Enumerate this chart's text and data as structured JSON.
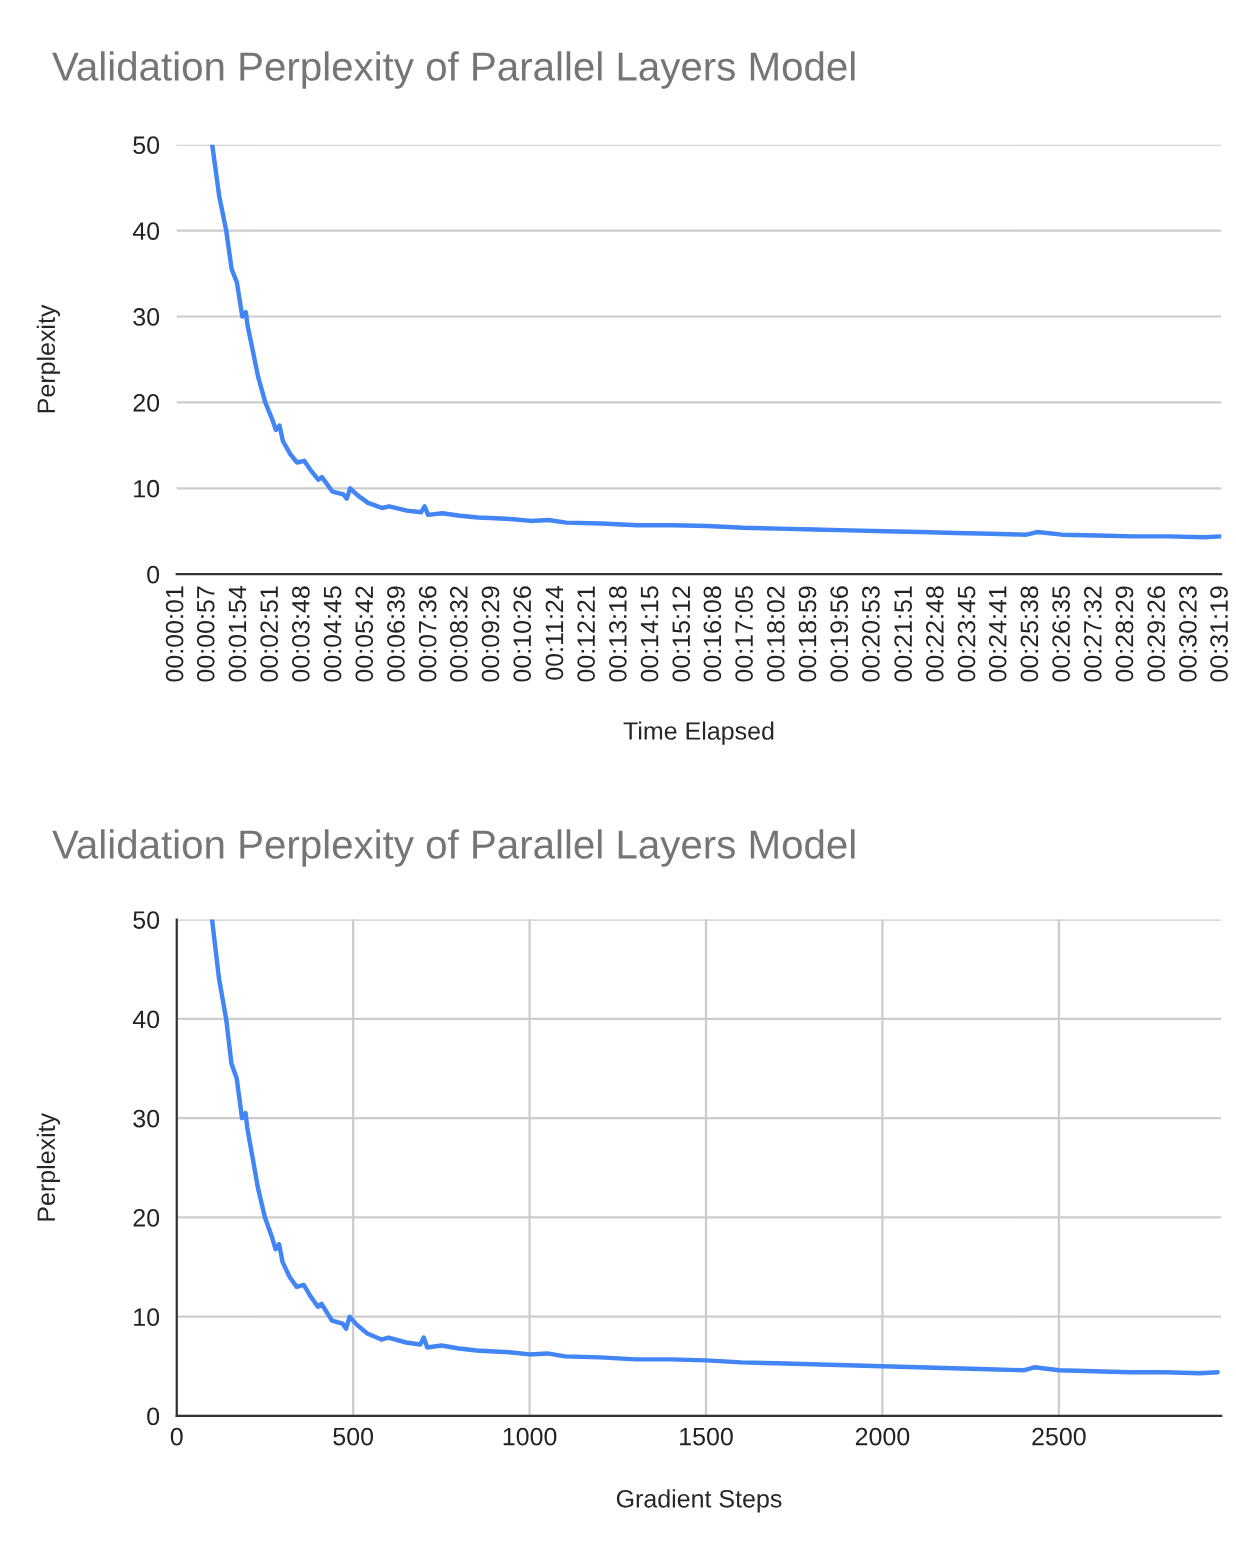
{
  "chart_data": [
    {
      "type": "line",
      "title": "Validation Perplexity of Parallel Layers Model",
      "xlabel": "Time Elapsed",
      "ylabel": "Perplexity",
      "grid": "y",
      "line_style": "solid",
      "xlim": [
        0.00028,
        0.52194
      ],
      "ylim": [
        0,
        50
      ],
      "yticks": [
        0,
        10,
        20,
        30,
        40,
        50
      ],
      "xticks": [
        {
          "value": 0.00028,
          "label": "00:00:01"
        },
        {
          "value": 0.01583,
          "label": "00:00:57"
        },
        {
          "value": 0.03167,
          "label": "00:01:54"
        },
        {
          "value": 0.0475,
          "label": "00:02:51"
        },
        {
          "value": 0.06333,
          "label": "00:03:48"
        },
        {
          "value": 0.07917,
          "label": "00:04:45"
        },
        {
          "value": 0.095,
          "label": "00:05:42"
        },
        {
          "value": 0.11083,
          "label": "00:06:39"
        },
        {
          "value": 0.12667,
          "label": "00:07:36"
        },
        {
          "value": 0.14222,
          "label": "00:08:32"
        },
        {
          "value": 0.15806,
          "label": "00:09:29"
        },
        {
          "value": 0.17389,
          "label": "00:10:26"
        },
        {
          "value": 0.19,
          "label": "00:11:24"
        },
        {
          "value": 0.20583,
          "label": "00:12:21"
        },
        {
          "value": 0.22167,
          "label": "00:13:18"
        },
        {
          "value": 0.2375,
          "label": "00:14:15"
        },
        {
          "value": 0.25333,
          "label": "00:15:12"
        },
        {
          "value": 0.26889,
          "label": "00:16:08"
        },
        {
          "value": 0.28472,
          "label": "00:17:05"
        },
        {
          "value": 0.30056,
          "label": "00:18:02"
        },
        {
          "value": 0.31639,
          "label": "00:18:59"
        },
        {
          "value": 0.33222,
          "label": "00:19:56"
        },
        {
          "value": 0.34806,
          "label": "00:20:53"
        },
        {
          "value": 0.36417,
          "label": "00:21:51"
        },
        {
          "value": 0.38,
          "label": "00:22:48"
        },
        {
          "value": 0.39583,
          "label": "00:23:45"
        },
        {
          "value": 0.41139,
          "label": "00:24:41"
        },
        {
          "value": 0.42722,
          "label": "00:25:38"
        },
        {
          "value": 0.44306,
          "label": "00:26:35"
        },
        {
          "value": 0.45889,
          "label": "00:27:32"
        },
        {
          "value": 0.47472,
          "label": "00:28:29"
        },
        {
          "value": 0.49056,
          "label": "00:29:26"
        },
        {
          "value": 0.50639,
          "label": "00:30:23"
        },
        {
          "value": 0.52194,
          "label": "00:31:19"
        }
      ],
      "series": [
        {
          "color": "#4285f4",
          "x": [
            0.018,
            0.0215,
            0.025,
            0.0277,
            0.0303,
            0.033,
            0.0348,
            0.0356,
            0.0374,
            0.0409,
            0.0445,
            0.048,
            0.0498,
            0.0516,
            0.0533,
            0.0569,
            0.0604,
            0.0639,
            0.0675,
            0.071,
            0.0728,
            0.0781,
            0.0834,
            0.0852,
            0.0869,
            0.0905,
            0.0958,
            0.0993,
            0.1028,
            0.1064,
            0.1152,
            0.1223,
            0.1241,
            0.1258,
            0.1329,
            0.1418,
            0.1506,
            0.1594,
            0.1683,
            0.1771,
            0.1859,
            0.1948,
            0.2125,
            0.2302,
            0.2478,
            0.2655,
            0.2832,
            0.3009,
            0.3186,
            0.3363,
            0.3539,
            0.3716,
            0.3893,
            0.407,
            0.4247,
            0.43,
            0.4424,
            0.4601,
            0.4777,
            0.4954,
            0.5131,
            0.5219
          ],
          "values": [
            50,
            44,
            40,
            35.5,
            34,
            30,
            30.5,
            29,
            27,
            23,
            20,
            18,
            16.8,
            17.3,
            15.5,
            14,
            13,
            13.2,
            12,
            11,
            11.3,
            9.6,
            9.3,
            8.8,
            10,
            9.2,
            8.3,
            8.0,
            7.7,
            7.9,
            7.4,
            7.2,
            7.9,
            6.9,
            7.1,
            6.8,
            6.6,
            6.5,
            6.4,
            6.2,
            6.3,
            6.0,
            5.9,
            5.7,
            5.7,
            5.6,
            5.4,
            5.3,
            5.2,
            5.1,
            5.0,
            4.9,
            4.8,
            4.7,
            4.6,
            4.9,
            4.6,
            4.5,
            4.4,
            4.4,
            4.3,
            4.4
          ]
        }
      ]
    },
    {
      "type": "line",
      "title": "Validation Perplexity of Parallel Layers Model",
      "xlabel": "Gradient Steps",
      "ylabel": "Perplexity",
      "grid": true,
      "line_style": "solid",
      "xlim": [
        0,
        2960
      ],
      "ylim": [
        0,
        50
      ],
      "xticks": [
        0,
        500,
        1000,
        1500,
        2000,
        2500
      ],
      "yticks": [
        0,
        10,
        20,
        30,
        40,
        50
      ],
      "series": [
        {
          "color": "#4285f4",
          "x": [
            100,
            120,
            140,
            155,
            170,
            185,
            195,
            200,
            210,
            230,
            250,
            270,
            280,
            290,
            300,
            320,
            340,
            360,
            380,
            400,
            410,
            440,
            470,
            480,
            490,
            510,
            540,
            560,
            580,
            600,
            650,
            690,
            700,
            710,
            750,
            800,
            850,
            900,
            950,
            1000,
            1050,
            1100,
            1200,
            1300,
            1400,
            1500,
            1600,
            1700,
            1800,
            1900,
            2000,
            2100,
            2200,
            2300,
            2400,
            2430,
            2500,
            2600,
            2700,
            2800,
            2900,
            2950
          ],
          "values": [
            50,
            44,
            40,
            35.5,
            34,
            30,
            30.5,
            29,
            27,
            23,
            20,
            18,
            16.8,
            17.3,
            15.5,
            14,
            13,
            13.2,
            12,
            11,
            11.3,
            9.6,
            9.3,
            8.8,
            10,
            9.2,
            8.3,
            8.0,
            7.7,
            7.9,
            7.4,
            7.2,
            7.9,
            6.9,
            7.1,
            6.8,
            6.6,
            6.5,
            6.4,
            6.2,
            6.3,
            6.0,
            5.9,
            5.7,
            5.7,
            5.6,
            5.4,
            5.3,
            5.2,
            5.1,
            5.0,
            4.9,
            4.8,
            4.7,
            4.6,
            4.9,
            4.6,
            4.5,
            4.4,
            4.4,
            4.3,
            4.4
          ]
        }
      ]
    }
  ]
}
